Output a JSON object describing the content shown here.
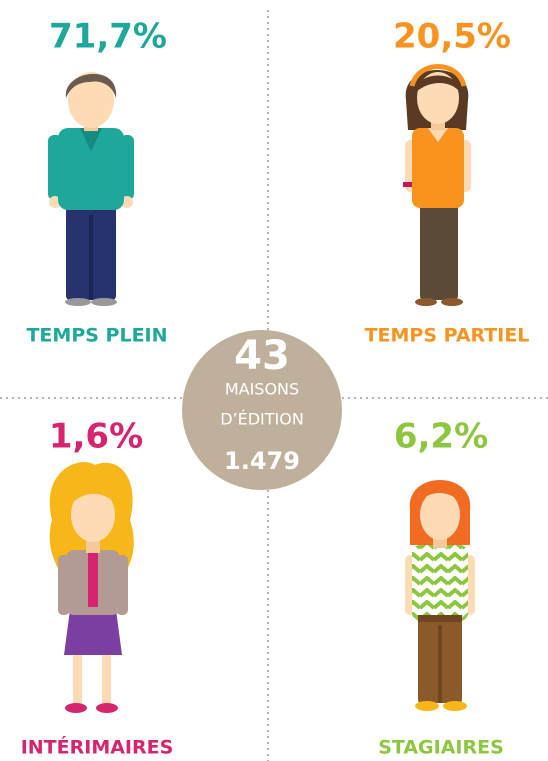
{
  "quadrants": [
    {
      "percent": "71,7%",
      "label": "TEMPS PLEIN"
    },
    {
      "percent": "20,5%",
      "label": "TEMPS PARTIEL"
    },
    {
      "percent": "1,6%",
      "label": "INTÉRIMAIRES"
    },
    {
      "percent": "6,2%",
      "label": "STAGIAIRES"
    }
  ],
  "center": {
    "number": "43",
    "line1": "MAISONS",
    "line2": "D’ÉDITION",
    "total": "1.479"
  }
}
